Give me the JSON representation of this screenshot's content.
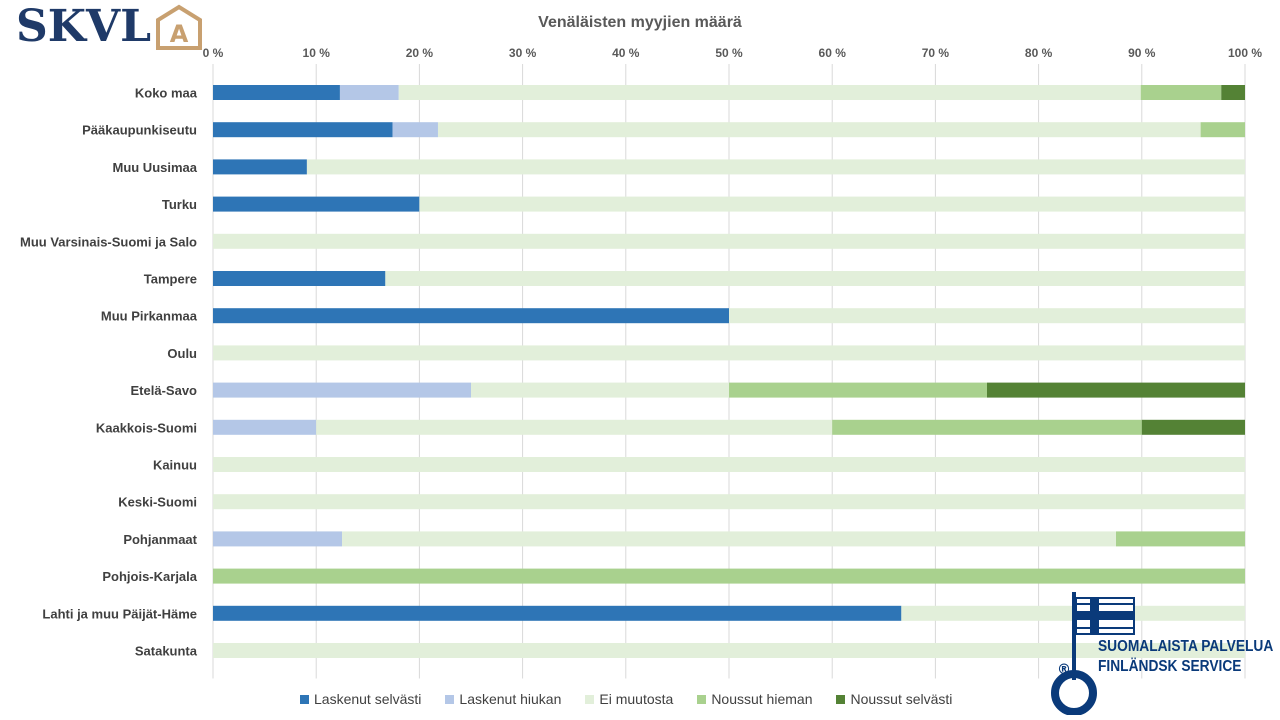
{
  "brand": {
    "logo_text": "SKVL",
    "logo_mark": "A",
    "logo_color": "#1f3a68",
    "mark_color": "#c8a070"
  },
  "chart_data": {
    "type": "bar",
    "orientation": "horizontal",
    "stacked": "100%",
    "title": "Venäläisten myyjien määrä",
    "xlabel": "",
    "ylabel": "",
    "xlim": [
      0,
      100
    ],
    "x_ticks": [
      "0 %",
      "10 %",
      "20 %",
      "30 %",
      "40 %",
      "50 %",
      "60 %",
      "70 %",
      "80 %",
      "90 %",
      "100 %"
    ],
    "grid": "vertical",
    "legend_position": "bottom",
    "categories": [
      "Koko maa",
      "Pääkaupunkiseutu",
      "Muu Uusimaa",
      "Turku",
      "Muu Varsinais-Suomi ja Salo",
      "Tampere",
      "Muu Pirkanmaa",
      "Oulu",
      "Etelä-Savo",
      "Kaakkois-Suomi",
      "Kainuu",
      "Keski-Suomi",
      "Pohjanmaat",
      "Pohjois-Karjala",
      "Lahti ja muu Päijät-Häme",
      "Satakunta"
    ],
    "series": [
      {
        "name": "Laskenut selvästi",
        "color": "#2e75b6",
        "values": [
          12.3,
          17.4,
          9.1,
          20.0,
          0,
          16.7,
          50.0,
          0,
          0,
          0,
          0,
          0,
          0,
          0,
          66.7,
          0
        ]
      },
      {
        "name": "Laskenut hiukan",
        "color": "#b4c7e7",
        "values": [
          5.7,
          4.4,
          0,
          0,
          0,
          0,
          0,
          0,
          25.0,
          10.0,
          0,
          0,
          12.5,
          0,
          0,
          0
        ]
      },
      {
        "name": "Ei muutosta",
        "color": "#e2efda",
        "values": [
          71.9,
          73.9,
          90.9,
          80.0,
          100,
          83.3,
          50.0,
          100,
          25.0,
          50.0,
          100,
          100,
          75.0,
          0,
          33.3,
          100
        ]
      },
      {
        "name": "Noussut hieman",
        "color": "#a9d18e",
        "values": [
          7.8,
          4.3,
          0,
          0,
          0,
          0,
          0,
          0,
          25.0,
          30.0,
          0,
          0,
          12.5,
          100,
          0,
          0
        ]
      },
      {
        "name": "Noussut selvästi",
        "color": "#548235",
        "values": [
          2.3,
          0,
          0,
          0,
          0,
          0,
          0,
          0,
          25.0,
          10.0,
          0,
          0,
          0,
          0,
          0,
          0
        ]
      }
    ]
  },
  "badge": {
    "line1": "SUOMALAISTA PALVELUA",
    "line2": "FINLÄNDSK SERVICE",
    "mark": "®",
    "color": "#0a3a7a"
  }
}
